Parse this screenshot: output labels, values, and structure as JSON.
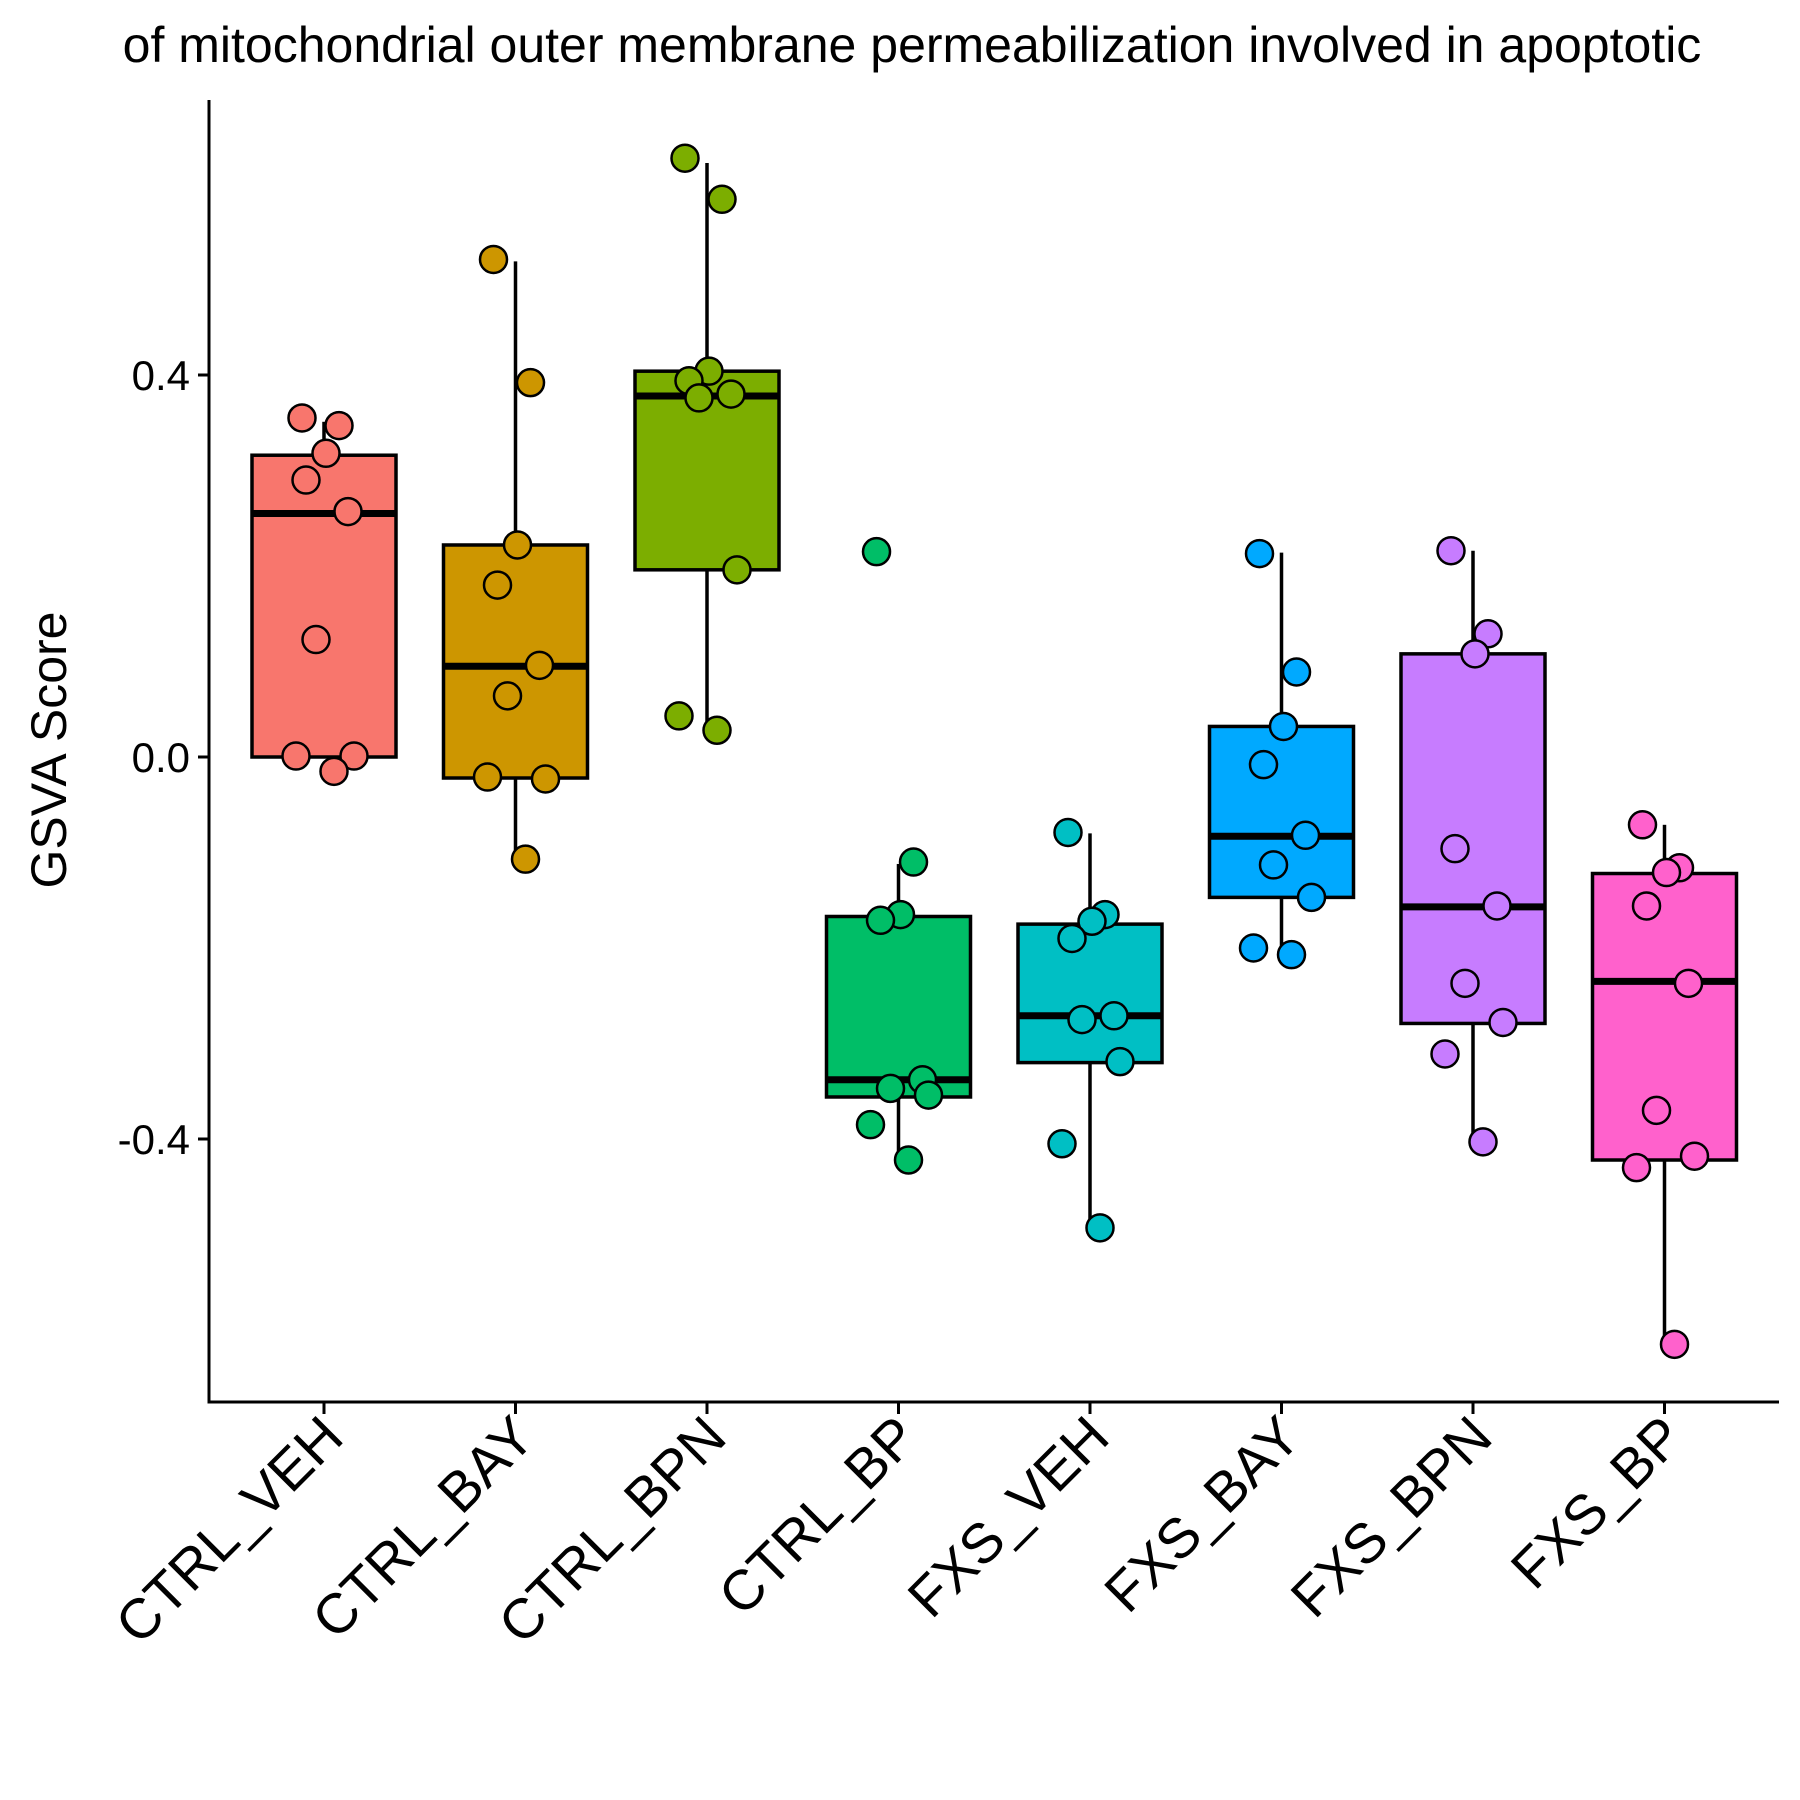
{
  "chart_data": {
    "type": "box",
    "title": "of mitochondrial outer membrane permeabilization involved in apoptotic",
    "xlabel": "",
    "ylabel": "GSVA Score",
    "ylim": [
      -0.67,
      0.69
    ],
    "yticks": [
      {
        "value": 0.4,
        "label": "0.4"
      },
      {
        "value": 0.0,
        "label": "0.0"
      },
      {
        "value": -0.4,
        "label": "-0.4"
      }
    ],
    "grid": false,
    "legend": "none",
    "categories": [
      "CTRL_VEH",
      "CTRL_BAY",
      "CTRL_BPN",
      "CTRL_BP",
      "FXS_VEH",
      "FXS_BAY",
      "FXS_BPN",
      "FXS_BP"
    ],
    "colors": [
      "#F8766D",
      "#CD9600",
      "#7CAE00",
      "#00BE67",
      "#00BFC4",
      "#00A9FF",
      "#C77CFF",
      "#FF61CC"
    ],
    "boxes": [
      {
        "group": "CTRL_VEH",
        "lower_whisker": 0.0,
        "q1": 0.0,
        "median": 0.255,
        "q3": 0.316,
        "upper_whisker": 0.351
      },
      {
        "group": "CTRL_BAY",
        "lower_whisker": -0.108,
        "q1": -0.022,
        "median": 0.095,
        "q3": 0.222,
        "upper_whisker": 0.519
      },
      {
        "group": "CTRL_BPN",
        "lower_whisker": 0.027,
        "q1": 0.196,
        "median": 0.378,
        "q3": 0.404,
        "upper_whisker": 0.622
      },
      {
        "group": "CTRL_BP",
        "lower_whisker": -0.423,
        "q1": -0.356,
        "median": -0.338,
        "q3": -0.167,
        "upper_whisker": -0.112
      },
      {
        "group": "FXS_VEH",
        "lower_whisker": -0.493,
        "q1": -0.32,
        "median": -0.271,
        "q3": -0.175,
        "upper_whisker": -0.08
      },
      {
        "group": "FXS_BAY",
        "lower_whisker": -0.206,
        "q1": -0.147,
        "median": -0.083,
        "q3": 0.032,
        "upper_whisker": 0.214
      },
      {
        "group": "FXS_BPN",
        "lower_whisker": -0.402,
        "q1": -0.279,
        "median": -0.157,
        "q3": 0.108,
        "upper_whisker": 0.216
      },
      {
        "group": "FXS_BP",
        "lower_whisker": -0.613,
        "q1": -0.422,
        "median": -0.235,
        "q3": -0.122,
        "upper_whisker": -0.071
      }
    ],
    "points": [
      {
        "group": "CTRL_VEH",
        "values": [
          0.355,
          0.347,
          0.318,
          0.29,
          0.257,
          0.123,
          0.001,
          0.001,
          -0.015
        ]
      },
      {
        "group": "CTRL_BAY",
        "values": [
          0.521,
          0.392,
          0.222,
          0.18,
          0.096,
          0.064,
          -0.023,
          -0.021,
          -0.107
        ]
      },
      {
        "group": "CTRL_BPN",
        "values": [
          0.627,
          0.584,
          0.404,
          0.394,
          0.38,
          0.376,
          0.196,
          0.043,
          0.028
        ]
      },
      {
        "group": "CTRL_BP",
        "values": [
          0.215,
          -0.11,
          -0.165,
          -0.171,
          -0.338,
          -0.347,
          -0.354,
          -0.385,
          -0.422
        ]
      },
      {
        "group": "FXS_VEH",
        "values": [
          -0.079,
          -0.165,
          -0.172,
          -0.19,
          -0.271,
          -0.275,
          -0.319,
          -0.405,
          -0.493
        ]
      },
      {
        "group": "FXS_BAY",
        "values": [
          0.213,
          0.089,
          0.032,
          -0.008,
          -0.082,
          -0.113,
          -0.147,
          -0.2,
          -0.207
        ]
      },
      {
        "group": "FXS_BPN",
        "values": [
          0.216,
          0.129,
          0.108,
          -0.096,
          -0.156,
          -0.237,
          -0.278,
          -0.311,
          -0.403
        ]
      },
      {
        "group": "FXS_BP",
        "values": [
          -0.071,
          -0.116,
          -0.121,
          -0.156,
          -0.237,
          -0.37,
          -0.418,
          -0.43,
          -0.615
        ]
      }
    ]
  }
}
